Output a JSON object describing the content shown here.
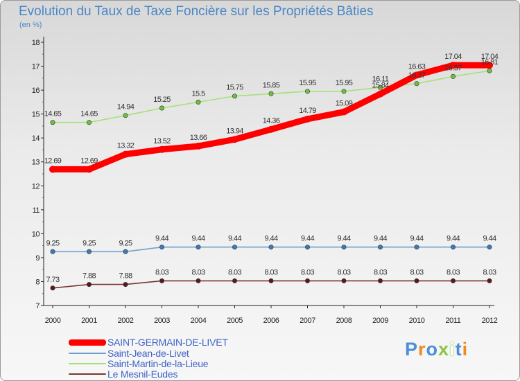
{
  "header": {
    "title": "Evolution du Taux de Taxe Foncière sur les Propriétés Bâties",
    "unit": "(en %)"
  },
  "chart_data": {
    "type": "line",
    "title": "Evolution du Taux de Taxe Foncière sur les Propriétés Bâties",
    "ylabel": "(en %)",
    "xlabel": "",
    "x": [
      "2000",
      "2001",
      "2002",
      "2003",
      "2004",
      "2005",
      "2006",
      "2007",
      "2008",
      "2009",
      "2010",
      "2011",
      "2012"
    ],
    "yticks": [
      "7",
      "8",
      "9",
      "10",
      "11",
      "12",
      "13",
      "14",
      "15",
      "16",
      "17",
      "18"
    ],
    "ylim": [
      7,
      18
    ],
    "grid": false,
    "legend_position": "bottom-left",
    "series": [
      {
        "name": "SAINT-GERMAIN-DE-LIVET",
        "color": "#ff0000",
        "values": [
          12.69,
          12.69,
          13.32,
          13.52,
          13.66,
          13.94,
          14.36,
          14.79,
          15.09,
          15.84,
          16.63,
          17.04,
          17.04
        ],
        "labels": [
          "12.69",
          "12.69",
          "13.32",
          "13.52",
          "13.66",
          "13.94",
          "14.36",
          "14.79",
          "15.09",
          "15.84",
          "16.63",
          "17.04",
          "17.04"
        ]
      },
      {
        "name": "Saint-Jean-de-Livet",
        "color": "#6fa0ce",
        "values": [
          9.25,
          9.25,
          9.25,
          9.44,
          9.44,
          9.44,
          9.44,
          9.44,
          9.44,
          9.44,
          9.44,
          9.44,
          9.44
        ],
        "labels": [
          "9.25",
          "9.25",
          "9.25",
          "9.44",
          "9.44",
          "9.44",
          "9.44",
          "9.44",
          "9.44",
          "9.44",
          "9.44",
          "9.44",
          "9.44"
        ]
      },
      {
        "name": "Saint-Martin-de-la-Lieue",
        "color": "#a6e07a",
        "values": [
          14.65,
          14.65,
          14.94,
          15.25,
          15.5,
          15.75,
          15.85,
          15.95,
          15.95,
          16.11,
          16.27,
          16.57,
          16.81
        ],
        "labels": [
          "14.65",
          "14.65",
          "14.94",
          "15.25",
          "15.5",
          "15.75",
          "15.85",
          "15.95",
          "15.95",
          "16.11",
          "16.27",
          "16.57",
          "16.81"
        ]
      },
      {
        "name": "Le Mesnil-Eudes",
        "color": "#7a3535",
        "values": [
          7.73,
          7.88,
          7.88,
          8.03,
          8.03,
          8.03,
          8.03,
          8.03,
          8.03,
          8.03,
          8.03,
          8.03,
          8.03
        ],
        "labels": [
          "7.73",
          "7.88",
          "7.88",
          "8.03",
          "8.03",
          "8.03",
          "8.03",
          "8.03",
          "8.03",
          "8.03",
          "8.03",
          "8.03",
          "8.03"
        ]
      }
    ]
  },
  "legend": {
    "items": [
      {
        "label": "SAINT-GERMAIN-DE-LIVET",
        "color": "#ff0000"
      },
      {
        "label": "Saint-Jean-de-Livet",
        "color": "#6fa0ce"
      },
      {
        "label": "Saint-Martin-de-la-Lieue",
        "color": "#a6e07a"
      },
      {
        "label": "Le Mesnil-Eudes",
        "color": "#7a3535"
      }
    ]
  },
  "logo": {
    "text": "Proxiti",
    "letter_colors": [
      "#4a8fd8",
      "#f08a1e",
      "#4a8fd8",
      "#8cc63f",
      "#ffffff",
      "#4a8fd8",
      "#f08a1e"
    ]
  }
}
